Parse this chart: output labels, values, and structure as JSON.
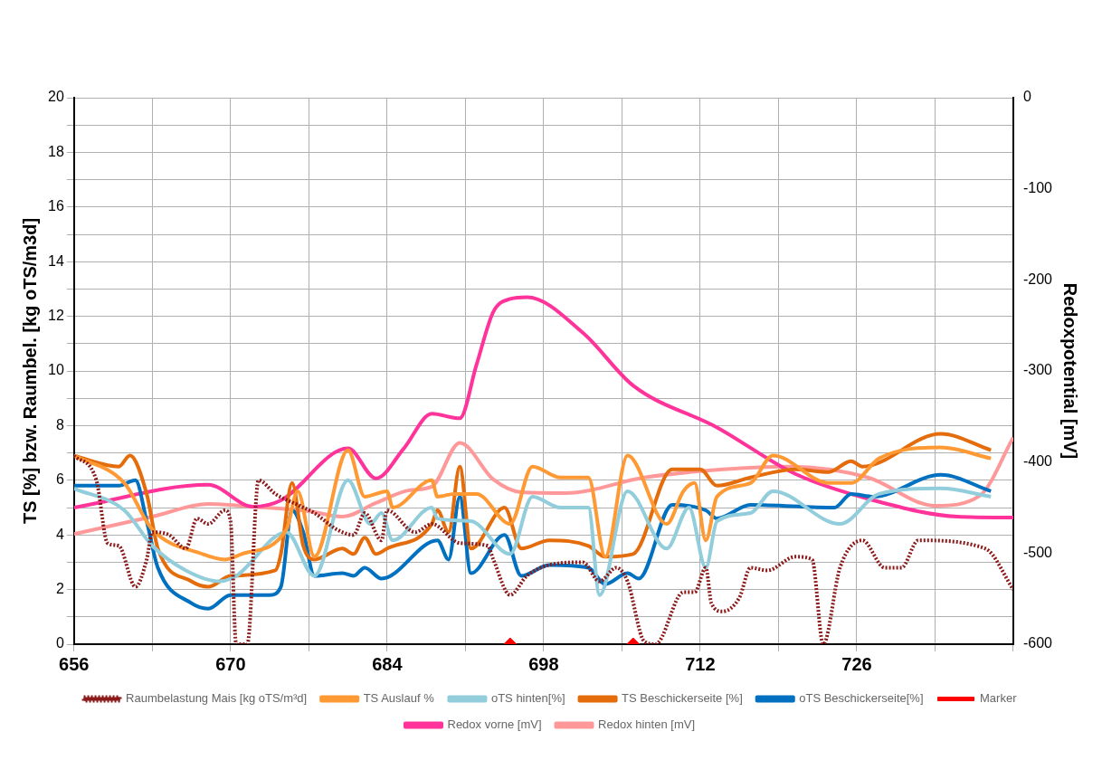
{
  "chart_data": {
    "type": "line",
    "ylabel": "TS [%] bzw. Raumbel. [kg oTS/m3d]",
    "y2label": "Redoxpotential [mV]",
    "xlim": [
      656,
      740
    ],
    "xticks": [
      656,
      {
        "value": 663,
        "label": null
      },
      670,
      {
        "value": 677,
        "label": null
      },
      684,
      {
        "value": 691,
        "label": null
      },
      698,
      {
        "value": 705,
        "label": null
      },
      712,
      {
        "value": 719,
        "label": null
      },
      726,
      {
        "value": 733,
        "label": null
      },
      {
        "value": 740,
        "label": null
      }
    ],
    "ylim": [
      0,
      20
    ],
    "yticks": [
      0,
      {
        "value": 1,
        "label": null
      },
      2,
      {
        "value": 3,
        "label": null
      },
      4,
      {
        "value": 5,
        "label": null
      },
      6,
      {
        "value": 7,
        "label": null
      },
      8,
      {
        "value": 9,
        "label": null
      },
      10,
      {
        "value": 11,
        "label": null
      },
      12,
      {
        "value": 13,
        "label": null
      },
      14,
      {
        "value": 15,
        "label": null
      },
      16,
      {
        "value": 17,
        "label": null
      },
      18,
      {
        "value": 19,
        "label": null
      },
      20
    ],
    "y2lim": [
      -600,
      0
    ],
    "y2ticks": [
      -600,
      -500,
      -400,
      -300,
      -200,
      -100,
      0
    ],
    "grid": true,
    "legend": "bottom",
    "marker": "none",
    "line_style": "solid",
    "series": [
      {
        "name": "Raumbelastung Mais [kg oTS/m³d]",
        "color": "#8b1a1a",
        "line_style": "dotted",
        "x": [
          656,
          658,
          659,
          660,
          661.5,
          662.5,
          663,
          664.5,
          666,
          667,
          668,
          669.5,
          670,
          670.5,
          671.5,
          672.5,
          674,
          676,
          677.5,
          679.5,
          681,
          682,
          683.5,
          684,
          686.5,
          688,
          690.5,
          693,
          693.5,
          695,
          696.5,
          698.5,
          701.5,
          703,
          704.5,
          705.5,
          707,
          708,
          710.5,
          711.5,
          712.5,
          713,
          714,
          715.5,
          716.5,
          718,
          720.5,
          722,
          723,
          724.5,
          726.5,
          728.5,
          730,
          731.5,
          737.5,
          740
        ],
        "values": [
          6.9,
          6.0,
          3.7,
          3.6,
          2.1,
          3.1,
          4.1,
          4.0,
          3.5,
          4.6,
          4.4,
          4.9,
          4.5,
          0,
          0,
          6.0,
          5.5,
          5.1,
          4.8,
          4.2,
          4.0,
          4.8,
          3.8,
          4.9,
          4.1,
          4.4,
          3.7,
          3.6,
          3.1,
          1.8,
          2.5,
          2.9,
          3.0,
          2.3,
          2.8,
          2.3,
          0.1,
          0,
          1.9,
          1.9,
          2.8,
          1.5,
          1.2,
          1.7,
          2.8,
          2.7,
          3.2,
          3.1,
          0,
          2.8,
          3.8,
          2.8,
          2.8,
          3.8,
          3.5,
          2.0
        ]
      },
      {
        "name": "TS Auslauf %",
        "color": "#ff9933",
        "x": [
          656,
          660.5,
          663,
          667.5,
          669.5,
          671,
          675,
          676,
          677.5,
          680.5,
          682,
          684,
          684.5,
          688,
          688.5,
          690,
          692,
          695,
          697,
          699.5,
          702,
          703.5,
          705.5,
          709,
          710.5,
          711.5,
          712.5,
          713.5,
          716.5,
          718.5,
          723.5,
          725.5,
          728,
          733.5,
          738
        ],
        "values": [
          6.9,
          5.9,
          4.2,
          3.3,
          3.1,
          3.3,
          4.2,
          5.6,
          3.2,
          7.1,
          5.4,
          5.6,
          5.0,
          6.0,
          5.4,
          5.5,
          5.5,
          4.4,
          6.5,
          6.1,
          6.1,
          3.2,
          6.9,
          4.4,
          5.6,
          5.9,
          3.8,
          5.4,
          5.9,
          6.9,
          5.9,
          5.9,
          6.8,
          7.2,
          6.8
        ]
      },
      {
        "name": "oTS hinten[%]",
        "color": "#92cddc",
        "x": [
          656,
          660.5,
          663,
          666,
          669,
          670.5,
          675,
          677.5,
          680.5,
          682.5,
          683.5,
          684.5,
          688,
          688.5,
          691.5,
          695,
          697,
          699.5,
          702,
          703,
          705.5,
          709,
          711,
          712.5,
          713.5,
          716.5,
          718.5,
          724.5,
          728,
          733.5,
          738
        ],
        "values": [
          5.7,
          4.9,
          3.6,
          2.7,
          2.3,
          2.5,
          4.1,
          2.5,
          6.0,
          4.4,
          4.8,
          3.8,
          5.0,
          4.6,
          4.5,
          3.3,
          5.4,
          5.0,
          5.0,
          1.8,
          5.6,
          3.5,
          5.0,
          2.8,
          4.5,
          4.8,
          5.6,
          4.4,
          5.5,
          5.7,
          5.4
        ]
      },
      {
        "name": "TS Beschickerseite [%]",
        "color": "#e46c0a",
        "x": [
          656,
          660,
          661,
          662.5,
          663.5,
          666.5,
          668,
          670,
          674,
          674.5,
          675.5,
          676.5,
          677.5,
          680,
          681,
          682,
          683,
          684,
          688,
          688.5,
          689.5,
          690.5,
          691.5,
          694.5,
          696,
          698.5,
          702,
          703.5,
          706,
          709.5,
          712,
          713.5,
          716.5,
          720.5,
          723.5,
          725.5,
          726.5,
          733.5,
          738
        ],
        "values": [
          6.9,
          6.5,
          6.9,
          5.5,
          3.5,
          2.3,
          2.1,
          2.5,
          2.7,
          3.3,
          5.9,
          3.6,
          3.1,
          3.5,
          3.3,
          3.9,
          3.3,
          3.5,
          4.4,
          4.9,
          4.1,
          6.5,
          3.5,
          5.0,
          3.5,
          3.8,
          3.6,
          3.2,
          3.3,
          6.4,
          6.4,
          5.8,
          6.1,
          6.4,
          6.3,
          6.7,
          6.5,
          7.7,
          7.1
        ]
      },
      {
        "name": "oTS Beschickerseite[%]",
        "color": "#0070c0",
        "x": [
          656,
          660,
          661.5,
          662.5,
          663.5,
          666.5,
          668,
          670,
          673.5,
          674.5,
          675.5,
          676.5,
          677.5,
          680,
          681,
          682,
          683.5,
          688.5,
          689.5,
          690.5,
          691.5,
          694.5,
          696,
          698.5,
          702,
          703.5,
          705.5,
          706.5,
          709.5,
          712.5,
          713.5,
          716.5,
          724,
          725.5,
          727.5,
          733.5,
          738
        ],
        "values": [
          5.8,
          5.8,
          6.0,
          4.5,
          2.8,
          1.5,
          1.3,
          1.8,
          1.8,
          2.1,
          4.9,
          4.1,
          2.5,
          2.6,
          2.5,
          2.8,
          2.4,
          3.8,
          3.1,
          5.4,
          2.6,
          4.0,
          2.5,
          2.9,
          2.8,
          2.2,
          2.6,
          2.4,
          5.1,
          4.9,
          4.6,
          5.1,
          5.0,
          5.5,
          5.4,
          6.2,
          5.6
        ]
      },
      {
        "name": "Marker",
        "color": "#ff0000",
        "type": "scatter",
        "marker": "diamond",
        "x": [
          695,
          706
        ],
        "values": [
          0,
          0
        ]
      },
      {
        "name": "Redox vorne [mV]",
        "color": "#ff3399",
        "axis": "y2",
        "x": [
          656,
          668,
          672,
          674.5,
          680.5,
          683,
          685.5,
          688,
          690.5,
          692,
          693.5,
          695,
          696.5,
          701.5,
          706,
          713.5,
          720.5,
          727.5,
          735,
          740
        ],
        "values": [
          -450,
          -425,
          -449,
          -442,
          -385,
          -418,
          -385,
          -347,
          -352,
          -293,
          -235,
          -221,
          -219,
          -258,
          -316,
          -362,
          -413,
          -442,
          -460,
          -461
        ]
      },
      {
        "name": "Redox hinten [mV]",
        "color": "#ff9999",
        "axis": "y2",
        "x": [
          656,
          663,
          668,
          672,
          677,
          680,
          683,
          686,
          688,
          690.5,
          693.5,
          696,
          700,
          707,
          713,
          720,
          727,
          733,
          737,
          740
        ],
        "values": [
          -479,
          -460,
          -446,
          -449,
          -454,
          -460,
          -445,
          -431,
          -427,
          -379,
          -419,
          -433,
          -434,
          -417,
          -409,
          -405,
          -417,
          -448,
          -437,
          -373
        ]
      }
    ]
  }
}
